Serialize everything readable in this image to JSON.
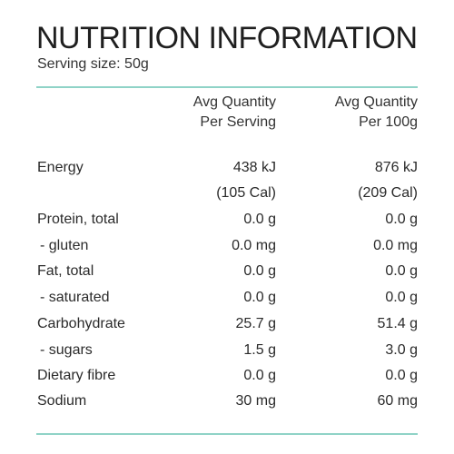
{
  "panel": {
    "title": "NUTRITION INFORMATION",
    "serving_size": "Serving size: 50g",
    "rule_color": "#8fd3c7"
  },
  "columns": {
    "per_serving": [
      "Avg Quantity",
      "Per Serving"
    ],
    "per_100g": [
      "Avg Quantity",
      "Per 100g"
    ]
  },
  "rows": [
    {
      "label": "Energy",
      "per_serving": "438 kJ",
      "per_100g": "876 kJ"
    },
    {
      "label": "",
      "per_serving": "(105 Cal)",
      "per_100g": "(209 Cal)"
    },
    {
      "label": "Protein, total",
      "per_serving": "0.0 g",
      "per_100g": "0.0 g"
    },
    {
      "label": "- gluten",
      "per_serving": "0.0 mg",
      "per_100g": "0.0 mg"
    },
    {
      "label": "Fat, total",
      "per_serving": "0.0 g",
      "per_100g": "0.0 g"
    },
    {
      "label": "- saturated",
      "per_serving": "0.0 g",
      "per_100g": "0.0 g"
    },
    {
      "label": "Carbohydrate",
      "per_serving": "25.7 g",
      "per_100g": "51.4 g"
    },
    {
      "label": "- sugars",
      "per_serving": "1.5 g",
      "per_100g": "3.0 g"
    },
    {
      "label": "Dietary fibre",
      "per_serving": "0.0 g",
      "per_100g": "0.0 g"
    },
    {
      "label": "Sodium",
      "per_serving": "30 mg",
      "per_100g": "60 mg"
    }
  ]
}
